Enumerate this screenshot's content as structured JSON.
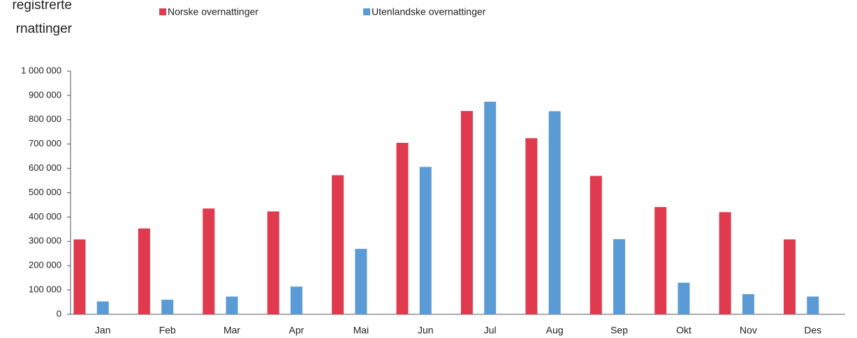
{
  "chart_data": {
    "type": "bar",
    "title_lines": [
      "registrerte",
      "rnattinger"
    ],
    "categories": [
      "Jan",
      "Feb",
      "Mar",
      "Apr",
      "Mai",
      "Jun",
      "Jul",
      "Aug",
      "Sep",
      "Okt",
      "Nov",
      "Des"
    ],
    "series": [
      {
        "name": "Norske overnattinger",
        "color": "#e03a4e",
        "values": [
          308000,
          353000,
          435000,
          423000,
          572000,
          705000,
          836000,
          724000,
          569000,
          441000,
          420000,
          308000
        ]
      },
      {
        "name": "Utenlandske overnattinger",
        "color": "#5b9bd5",
        "values": [
          53000,
          60000,
          73000,
          114000,
          269000,
          606000,
          874000,
          835000,
          309000,
          130000,
          83000,
          73000
        ]
      }
    ],
    "ylim": [
      0,
      1000000
    ],
    "yticks": [
      0,
      {
        "value": 100000,
        "label": "100 000"
      },
      {
        "value": 200000,
        "label": "200 000"
      },
      {
        "value": 300000,
        "label": "300 000"
      },
      {
        "value": 400000,
        "label": "400 000"
      },
      {
        "value": 500000,
        "label": "500 000"
      },
      {
        "value": 600000,
        "label": "600 000"
      },
      {
        "value": 700000,
        "label": "700 000"
      },
      {
        "value": 800000,
        "label": "800 000"
      },
      {
        "value": 900000,
        "label": "900 000"
      },
      {
        "value": 1000000,
        "label": "1 000 000"
      }
    ],
    "grid": false
  }
}
